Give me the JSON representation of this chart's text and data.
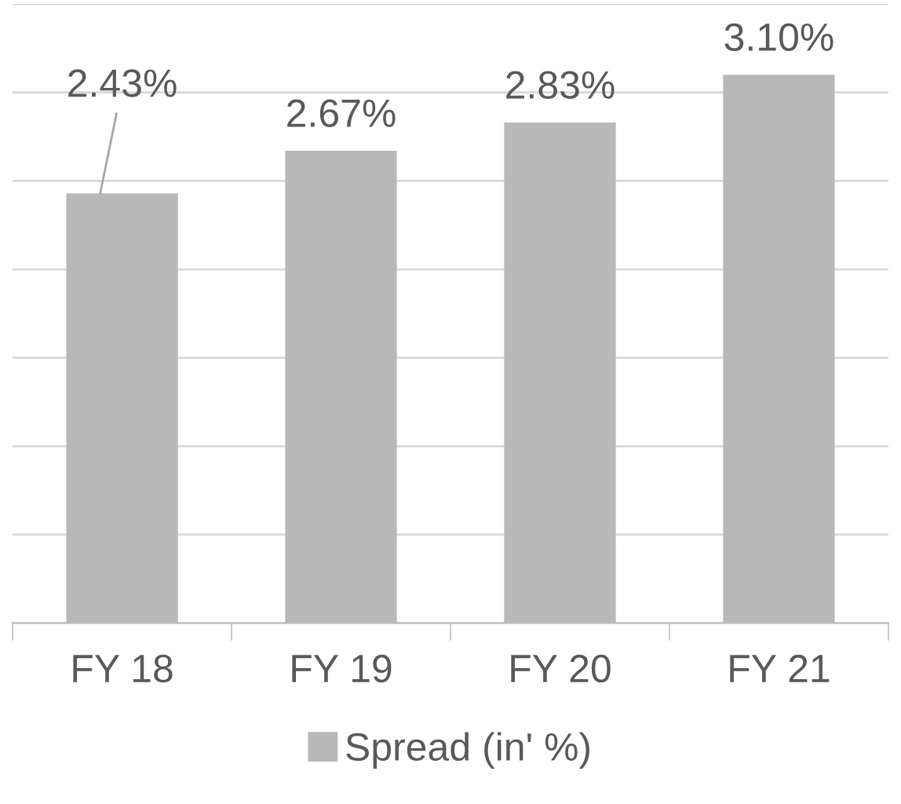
{
  "chart_data": {
    "type": "bar",
    "categories": [
      "FY 18",
      "FY 19",
      "FY 20",
      "FY 21"
    ],
    "series": [
      {
        "name": "Spread (in' %)",
        "color": "#b8b8b8",
        "values": [
          2.43,
          2.67,
          2.83,
          3.1
        ],
        "value_labels": [
          "2.43%",
          "2.67%",
          "2.83%",
          "3.10%"
        ]
      }
    ],
    "ylim": [
      0,
      3.5
    ],
    "yticks": [
      {
        "value": 0,
        "label": null
      },
      {
        "value": 0.5,
        "label": null
      },
      {
        "value": 1,
        "label": null
      },
      {
        "value": 1.5,
        "label": null
      },
      {
        "value": 2,
        "label": null
      },
      {
        "value": 2.5,
        "label": null
      },
      {
        "value": 3,
        "label": null
      },
      {
        "value": 3.5,
        "label": null
      }
    ],
    "tick_labels": "x",
    "grid": "y",
    "legend": "bottom"
  }
}
